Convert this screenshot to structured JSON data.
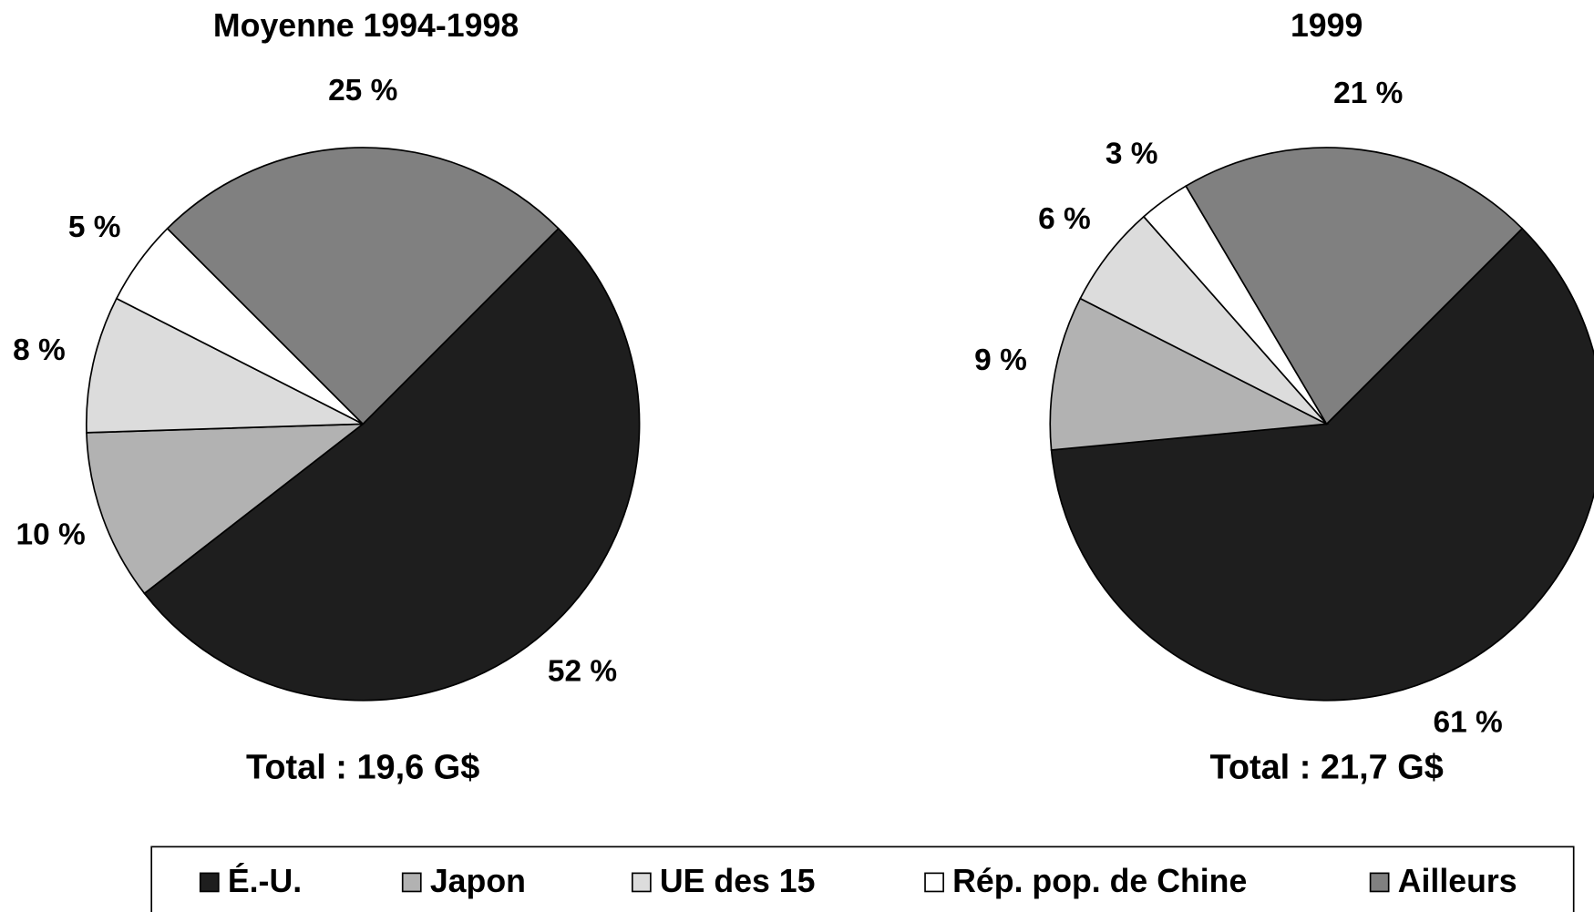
{
  "legend": {
    "items": [
      "É.-U.",
      "Japon",
      "UE des 15",
      "Rép. pop. de Chine",
      "Ailleurs"
    ],
    "colors": [
      "#1e1e1e",
      "#b2b2b2",
      "#dcdcdc",
      "#ffffff",
      "#808080"
    ]
  },
  "chart_data": [
    {
      "type": "pie",
      "title": "Moyenne 1994-1998",
      "note": "Total : 19,6 G$",
      "values": [
        52,
        10,
        8,
        5,
        25
      ],
      "value_labels": [
        "52 %",
        "10 %",
        "8 %",
        "5 %",
        "25 %"
      ]
    },
    {
      "type": "pie",
      "title": "1999",
      "note": "Total : 21,7 G$",
      "values": [
        61,
        9,
        6,
        3,
        21
      ],
      "value_labels": [
        "61 %",
        "9 %",
        "6 %",
        "3 %",
        "21 %"
      ]
    }
  ]
}
